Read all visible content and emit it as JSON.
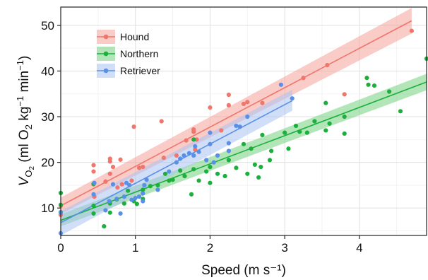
{
  "chart_data": {
    "type": "scatter",
    "xlabel": "Speed (m s⁻¹)",
    "ylabel": {
      "main": "V",
      "sub": "O",
      "sub2": "2",
      "unit_a": " (ml O",
      "unit_b": "2",
      "unit_c": " kg",
      "unit_d": "−1",
      "unit_e": " min",
      "unit_f": "−1",
      "unit_g": ")"
    },
    "xlim": [
      0,
      4.9
    ],
    "ylim": [
      4,
      54
    ],
    "xticks": [
      0,
      1,
      2,
      3,
      4
    ],
    "yticks": [
      10,
      20,
      30,
      40,
      50
    ],
    "grid": true,
    "legend_position": "top-left",
    "series": [
      {
        "name": "Hound",
        "color": "#F0756B",
        "band_color": "#F5A29B",
        "fit": {
          "x": [
            0,
            4.7
          ],
          "y": [
            10.5,
            51.0
          ],
          "ci_low": [
            8.7,
            48.2
          ],
          "ci_high": [
            12.3,
            53.8
          ]
        },
        "points": [
          [
            0.0,
            8.5
          ],
          [
            0.0,
            10.5
          ],
          [
            0.44,
            19.4
          ],
          [
            0.44,
            15.2
          ],
          [
            0.44,
            18.0
          ],
          [
            0.45,
            12.5
          ],
          [
            0.6,
            15.8
          ],
          [
            0.66,
            20.8
          ],
          [
            0.66,
            20.2
          ],
          [
            0.66,
            17.5
          ],
          [
            0.7,
            19.0
          ],
          [
            0.76,
            14.5
          ],
          [
            0.8,
            20.6
          ],
          [
            0.82,
            15.2
          ],
          [
            0.95,
            16.0
          ],
          [
            0.98,
            27.8
          ],
          [
            1.05,
            18.8
          ],
          [
            1.1,
            19.0
          ],
          [
            1.35,
            29.0
          ],
          [
            1.38,
            21.0
          ],
          [
            1.55,
            21.5
          ],
          [
            1.68,
            24.8
          ],
          [
            1.78,
            26.7
          ],
          [
            1.78,
            27.2
          ],
          [
            1.8,
            22.8
          ],
          [
            1.82,
            25.0
          ],
          [
            2.0,
            32.0
          ],
          [
            2.15,
            27.0
          ],
          [
            2.25,
            34.8
          ],
          [
            2.25,
            32.5
          ],
          [
            2.45,
            32.8
          ],
          [
            2.5,
            33.2
          ],
          [
            2.7,
            33.0
          ],
          [
            3.25,
            38.5
          ],
          [
            3.57,
            41.3
          ],
          [
            3.8,
            34.9
          ],
          [
            4.7,
            48.8
          ]
        ]
      },
      {
        "name": "Northern",
        "color": "#1BAF3C",
        "band_color": "#73D07E",
        "fit": {
          "x": [
            0,
            4.9
          ],
          "y": [
            7.3,
            37.6
          ],
          "ci_low": [
            6.0,
            35.8
          ],
          "ci_high": [
            8.6,
            39.4
          ]
        },
        "points": [
          [
            0.0,
            13.3
          ],
          [
            0.0,
            10.7
          ],
          [
            0.0,
            9.1
          ],
          [
            0.44,
            8.8
          ],
          [
            0.44,
            10.5
          ],
          [
            0.44,
            15.3
          ],
          [
            0.58,
            6.0
          ],
          [
            0.66,
            9.0
          ],
          [
            0.66,
            11.0
          ],
          [
            0.75,
            11.9
          ],
          [
            0.85,
            11.0
          ],
          [
            0.9,
            13.8
          ],
          [
            0.98,
            11.5
          ],
          [
            1.02,
            10.9
          ],
          [
            1.1,
            12.0
          ],
          [
            1.1,
            14.0
          ],
          [
            1.2,
            14.8
          ],
          [
            1.3,
            15.0
          ],
          [
            1.4,
            17.5
          ],
          [
            1.45,
            16.0
          ],
          [
            1.5,
            16.2
          ],
          [
            1.6,
            18.2
          ],
          [
            1.66,
            17.0
          ],
          [
            1.75,
            13.0
          ],
          [
            1.78,
            18.5
          ],
          [
            1.78,
            25.0
          ],
          [
            1.85,
            16.0
          ],
          [
            1.95,
            18.0
          ],
          [
            2.0,
            19.0
          ],
          [
            2.0,
            15.5
          ],
          [
            2.1,
            17.5
          ],
          [
            2.2,
            17.0
          ],
          [
            2.25,
            20.5
          ],
          [
            2.35,
            18.8
          ],
          [
            2.45,
            24.0
          ],
          [
            2.5,
            17.5
          ],
          [
            2.55,
            23.0
          ],
          [
            2.6,
            19.5
          ],
          [
            2.65,
            16.7
          ],
          [
            2.68,
            19.0
          ],
          [
            2.7,
            26.0
          ],
          [
            2.8,
            20.5
          ],
          [
            2.82,
            22.5
          ],
          [
            3.0,
            26.5
          ],
          [
            3.05,
            23.0
          ],
          [
            3.15,
            28.0
          ],
          [
            3.2,
            26.7
          ],
          [
            3.3,
            26.5
          ],
          [
            3.4,
            29.0
          ],
          [
            3.55,
            33.0
          ],
          [
            3.55,
            27.0
          ],
          [
            3.6,
            28.5
          ],
          [
            3.8,
            30.0
          ],
          [
            3.8,
            26.3
          ],
          [
            4.1,
            38.5
          ],
          [
            4.12,
            37.0
          ],
          [
            4.2,
            36.8
          ],
          [
            4.4,
            35.5
          ],
          [
            4.55,
            31.2
          ],
          [
            4.9,
            42.7
          ]
        ]
      },
      {
        "name": "Retriever",
        "color": "#5A8FE8",
        "band_color": "#A9C2F2",
        "fit": {
          "x": [
            0,
            3.1
          ],
          "y": [
            6.8,
            33.5
          ],
          "ci_low": [
            4.0,
            31.3
          ],
          "ci_high": [
            9.3,
            35.9
          ]
        },
        "points": [
          [
            0.0,
            4.5
          ],
          [
            0.0,
            9.0
          ],
          [
            0.44,
            13.0
          ],
          [
            0.45,
            15.5
          ],
          [
            0.6,
            9.5
          ],
          [
            0.65,
            11.5
          ],
          [
            0.7,
            15.2
          ],
          [
            0.75,
            12.0
          ],
          [
            0.8,
            8.8
          ],
          [
            0.85,
            12.5
          ],
          [
            0.88,
            15.5
          ],
          [
            0.92,
            15.0
          ],
          [
            0.95,
            11.8
          ],
          [
            1.0,
            12.2
          ],
          [
            1.05,
            12.5
          ],
          [
            1.1,
            11.5
          ],
          [
            1.1,
            13.2
          ],
          [
            1.12,
            15.0
          ],
          [
            1.15,
            16.2
          ],
          [
            1.3,
            14.0
          ],
          [
            1.45,
            18.0
          ],
          [
            1.55,
            20.0
          ],
          [
            1.6,
            20.8
          ],
          [
            1.65,
            21.5
          ],
          [
            1.72,
            22.0
          ],
          [
            1.78,
            21.5
          ],
          [
            1.8,
            23.5
          ],
          [
            1.85,
            22.3
          ],
          [
            1.95,
            20.5
          ],
          [
            2.0,
            24.0
          ],
          [
            2.0,
            26.5
          ],
          [
            2.05,
            20.0
          ],
          [
            2.1,
            21.5
          ],
          [
            2.25,
            22.5
          ],
          [
            2.25,
            24.2
          ],
          [
            2.35,
            28.0
          ],
          [
            2.4,
            27.8
          ],
          [
            2.5,
            30.0
          ],
          [
            2.95,
            37.0
          ],
          [
            3.1,
            34.0
          ]
        ]
      }
    ]
  }
}
